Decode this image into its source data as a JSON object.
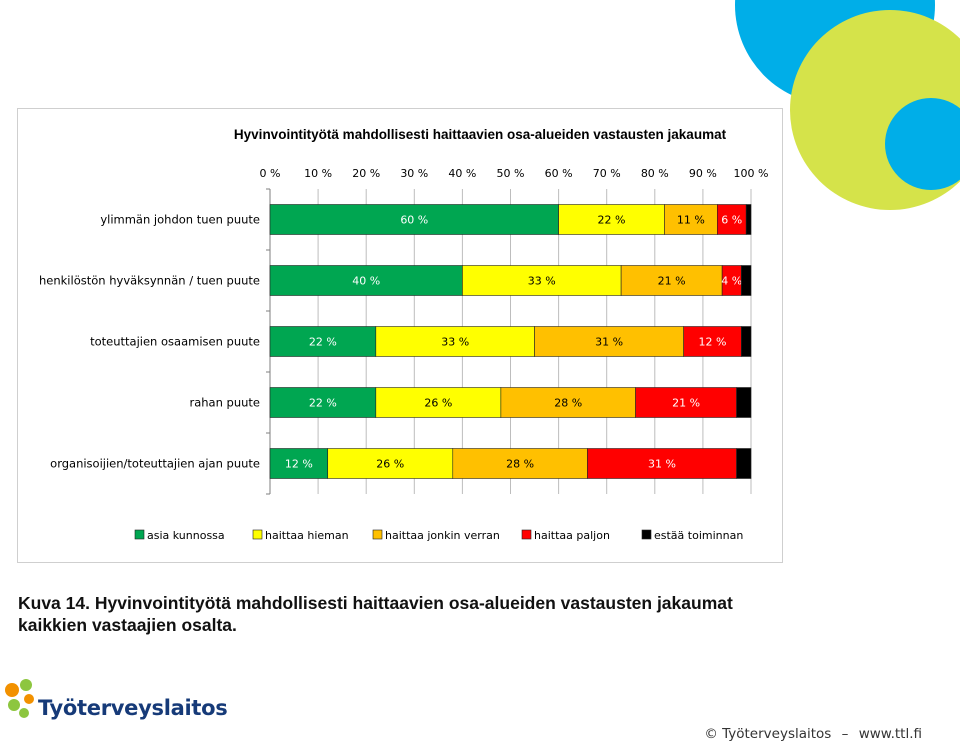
{
  "chart_data": {
    "type": "bar",
    "orientation": "horizontal",
    "stacked": "percent",
    "title": "Hyvinvointityötä mahdollisesti haittaavien osa-alueiden vastausten jakaumat",
    "categories": [
      "ylimmän johdon tuen puute",
      "henkilöstön hyväksynnän / tuen puute",
      "toteuttajien osaamisen puute",
      "rahan puute",
      "organisoijien/toteuttajien ajan puute"
    ],
    "series": [
      {
        "name": "asia kunnossa",
        "color": "#00a651",
        "values": [
          60,
          40,
          22,
          22,
          12
        ],
        "labels": [
          "60 %",
          "40 %",
          "22 %",
          "22 %",
          "12 %"
        ]
      },
      {
        "name": "haittaa hieman",
        "color": "#ffff00",
        "values": [
          22,
          33,
          33,
          26,
          26
        ],
        "labels": [
          "22 %",
          "33 %",
          "33 %",
          "26 %",
          "26 %"
        ]
      },
      {
        "name": "haittaa jonkin verran",
        "color": "#ffc000",
        "values": [
          11,
          21,
          31,
          28,
          28
        ],
        "labels": [
          "11 %",
          "21 %",
          "31 %",
          "28 %",
          "28 %"
        ]
      },
      {
        "name": "haittaa paljon",
        "color": "#ff0000",
        "values": [
          6,
          4,
          12,
          21,
          31
        ],
        "labels": [
          "6 %",
          "4 %",
          "12 %",
          "21 %",
          "31 %"
        ]
      },
      {
        "name": "estää toiminnan",
        "color": "#000000",
        "values": [
          2,
          2,
          2,
          3,
          4
        ],
        "labels": [
          "",
          "",
          "",
          "",
          ""
        ]
      }
    ],
    "xlim": [
      0,
      100
    ],
    "xticks": [
      "0 %",
      "10 %",
      "20 %",
      "30 %",
      "40 %",
      "50 %",
      "60 %",
      "70 %",
      "80 %",
      "90 %",
      "100 %"
    ],
    "xaxis_position": "top",
    "grid": true,
    "legend": "bottom"
  },
  "caption": {
    "line1": "Kuva 14. Hyvinvointityötä mahdollisesti haittaavien osa-alueiden vastausten jakaumat",
    "line2": "kaikkien vastaajien osalta."
  },
  "logo": {
    "text": "Työterveyslaitos",
    "icon": "ttl-logo-icon"
  },
  "footer": {
    "copyright": "© Työterveyslaitos",
    "dash": "–",
    "url": "www.ttl.fi"
  },
  "colors": {
    "decor_blue": "#00aee8",
    "decor_green": "#d5e34a",
    "logo_orange": "#f29100",
    "logo_green": "#8dc63f",
    "logo_text": "#163a78"
  }
}
